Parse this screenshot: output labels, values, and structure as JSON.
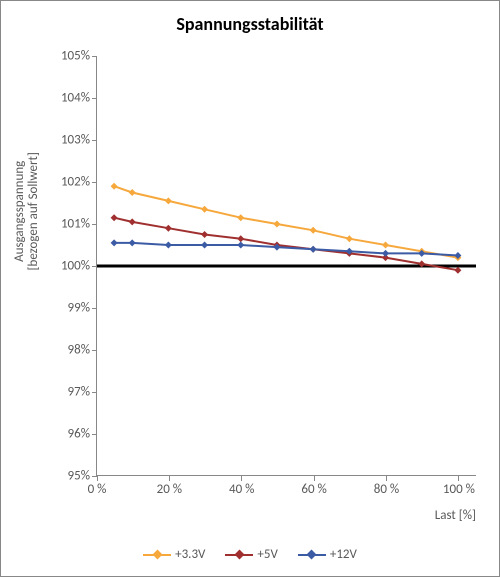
{
  "chart": {
    "type": "line",
    "title": "Spannungsstabilität",
    "title_fontsize": 18,
    "yaxis_label": "Ausgangsspannung\n[bezogen auf Sollwert]",
    "xaxis_label": "Last [%]",
    "label_fontsize": 13,
    "tick_fontsize": 13,
    "background_color": "#ffffff",
    "border_color": "#888888",
    "text_color": "#595959",
    "x": {
      "min": 0,
      "max": 105,
      "ticks": [
        0,
        20,
        40,
        60,
        80,
        100
      ],
      "tick_labels": [
        "0 %",
        "20 %",
        "40 %",
        "60 %",
        "80 %",
        "100 %"
      ]
    },
    "y": {
      "min": 95,
      "max": 105,
      "ticks": [
        95,
        96,
        97,
        98,
        99,
        100,
        101,
        102,
        103,
        104,
        105
      ],
      "tick_labels": [
        "95%",
        "96%",
        "97%",
        "98%",
        "99%",
        "100%",
        "101%",
        "102%",
        "103%",
        "104%",
        "105%"
      ]
    },
    "reference_line": {
      "y": 100,
      "color": "#000000",
      "width": 3
    },
    "line_width": 2,
    "marker_size": 7,
    "marker_shape": "diamond",
    "series": [
      {
        "name": "+3.3V",
        "color": "#f6a83c",
        "x": [
          5,
          10,
          20,
          30,
          40,
          50,
          60,
          70,
          80,
          90,
          100
        ],
        "y": [
          101.9,
          101.75,
          101.55,
          101.35,
          101.15,
          101.0,
          100.85,
          100.65,
          100.5,
          100.35,
          100.2
        ]
      },
      {
        "name": "+5V",
        "color": "#a03030",
        "x": [
          5,
          10,
          20,
          30,
          40,
          50,
          60,
          70,
          80,
          90,
          100
        ],
        "y": [
          101.15,
          101.05,
          100.9,
          100.75,
          100.65,
          100.5,
          100.4,
          100.3,
          100.2,
          100.05,
          99.9
        ]
      },
      {
        "name": "+12V",
        "color": "#3b5ba5",
        "x": [
          5,
          10,
          20,
          30,
          40,
          50,
          60,
          70,
          80,
          90,
          100
        ],
        "y": [
          100.55,
          100.55,
          100.5,
          100.5,
          100.5,
          100.45,
          100.4,
          100.35,
          100.3,
          100.3,
          100.25
        ]
      }
    ],
    "legend": {
      "position": "bottom",
      "items": [
        "+3.3V",
        "+5V",
        "+12V"
      ]
    }
  }
}
